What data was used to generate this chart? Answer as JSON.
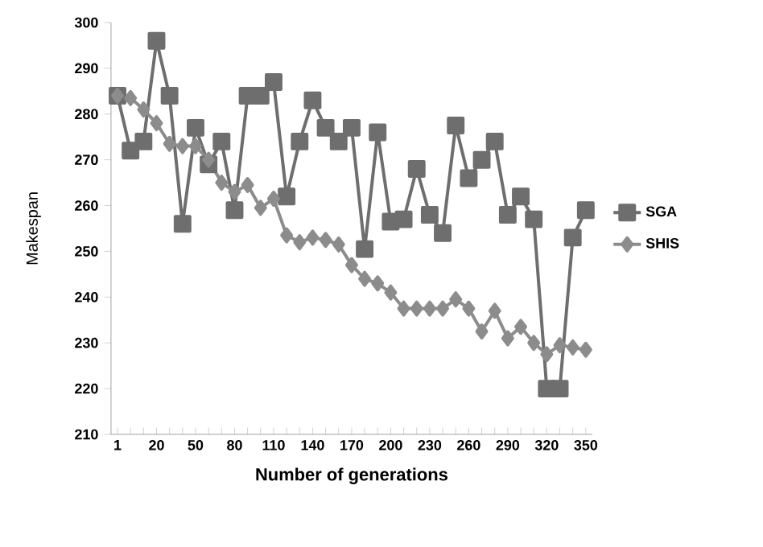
{
  "chart_data": {
    "type": "line",
    "xlabel": "Number of generations",
    "ylabel": "Makespan",
    "categories": [
      "1",
      null,
      null,
      "20",
      null,
      null,
      "50",
      null,
      null,
      "80",
      null,
      null,
      "110",
      null,
      null,
      "140",
      null,
      null,
      "170",
      null,
      null,
      "200",
      null,
      null,
      "230",
      null,
      null,
      "260",
      null,
      null,
      "290",
      null,
      null,
      "320",
      null,
      null,
      "350"
    ],
    "ylim": [
      210,
      300
    ],
    "yticks": [
      210,
      220,
      230,
      240,
      250,
      260,
      270,
      280,
      290,
      300
    ],
    "grid": false,
    "legend": "right",
    "line_style": "solid",
    "series": [
      {
        "name": "SGA",
        "color": "#6e6e6e",
        "marker": "square",
        "values": [
          284,
          272,
          274,
          296,
          284,
          256,
          277,
          269,
          274,
          259,
          284,
          284,
          287,
          262,
          274,
          283,
          277,
          274,
          277,
          250.5,
          276,
          256.5,
          257,
          268,
          258,
          254,
          277.5,
          266,
          270,
          274,
          258,
          262,
          257,
          220,
          220,
          253,
          259
        ]
      },
      {
        "name": "SHIS",
        "color": "#8c8c8c",
        "marker": "diamond",
        "values": [
          284,
          283.5,
          281,
          278,
          273.5,
          273,
          273,
          270,
          265,
          263,
          264.5,
          259.5,
          261.5,
          253.5,
          252,
          253,
          252.5,
          251.5,
          247,
          244,
          243,
          241,
          237.5,
          237.5,
          237.5,
          237.5,
          239.5,
          237.5,
          232.5,
          237,
          231,
          233.5,
          230,
          227.5,
          229.5,
          229,
          228.5
        ]
      }
    ]
  }
}
